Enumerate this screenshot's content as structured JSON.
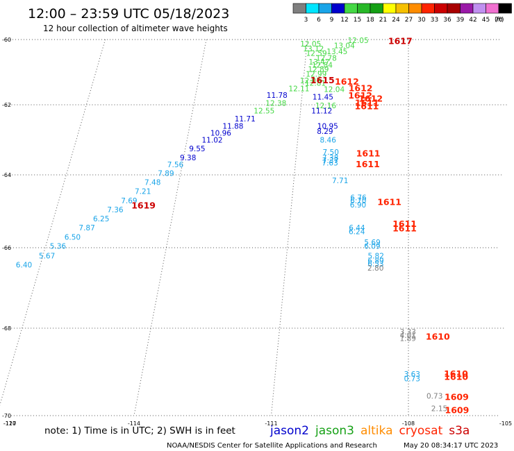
{
  "header": {
    "title": "12:00 – 23:59 UTC 05/18/2023",
    "subtitle": "12 hour collection of altimeter wave heights",
    "units": "(ft)"
  },
  "legend_scale": {
    "labels": [
      "3",
      "6",
      "9",
      "12",
      "15",
      "18",
      "21",
      "24",
      "27",
      "30",
      "33",
      "36",
      "39",
      "42",
      "45",
      "70"
    ],
    "colors": [
      "#7f7f7f",
      "#00e5ff",
      "#19a4e8",
      "#0000cd",
      "#44d844",
      "#28b828",
      "#15a015",
      "#ffff00",
      "#f5c000",
      "#ff8c00",
      "#ff2400",
      "#cc0000",
      "#a80000",
      "#9a1aa8",
      "#c090f0",
      "#f070d0",
      "#000000"
    ]
  },
  "footer": {
    "note": "note:  1) Time is in UTC;  2) SWH is in feet",
    "missions": [
      {
        "name": "jason2",
        "color": "#0000cd"
      },
      {
        "name": "jason3",
        "color": "#15a015"
      },
      {
        "name": "altika",
        "color": "#ff8c00"
      },
      {
        "name": "cryosat",
        "color": "#ff2400"
      },
      {
        "name": "s3a",
        "color": "#cc0000"
      }
    ],
    "credit": "NOAA/NESDIS Center for Satellite Applications and Research",
    "timestamp": "May 20 08:34:17 UTC 2023"
  },
  "chart_data": {
    "type": "scatter",
    "title": "",
    "xlabel": "Longitude",
    "ylabel": "Latitude",
    "xlim": [
      -120,
      -105
    ],
    "ylim": [
      -70,
      -60
    ],
    "x_ticks": [
      -120,
      -117,
      -114,
      -111,
      -108,
      -105
    ],
    "x_tick_labels": [
      "-120",
      "-117",
      "-114",
      "-111",
      "-108",
      "-105"
    ],
    "y_ticks": [
      -60,
      -62,
      -64,
      -66,
      -68,
      -70
    ],
    "y_tick_labels": [
      "-60",
      "-62",
      "-64",
      "-66",
      "-68",
      "-70"
    ],
    "grid": true,
    "series": [
      {
        "name": "jason3",
        "color": "#44d844",
        "points": [
          {
            "lon": -109.8,
            "lat": -60.02,
            "v": "12.05"
          },
          {
            "lon": -111.2,
            "lat": -60.13,
            "v": "12.05"
          },
          {
            "lon": -110.2,
            "lat": -60.18,
            "v": "13.04"
          },
          {
            "lon": -111.1,
            "lat": -60.28,
            "v": "13.12"
          },
          {
            "lon": -110.4,
            "lat": -60.36,
            "v": "13.45"
          },
          {
            "lon": -111.0,
            "lat": -60.42,
            "v": "12.59"
          },
          {
            "lon": -110.7,
            "lat": -60.56,
            "v": "12.78"
          },
          {
            "lon": -110.9,
            "lat": -60.68,
            "v": "13.47"
          },
          {
            "lon": -110.8,
            "lat": -60.78,
            "v": "12.84"
          },
          {
            "lon": -110.9,
            "lat": -60.9,
            "v": "12.89"
          },
          {
            "lon": -110.95,
            "lat": -61.05,
            "v": "12.99"
          },
          {
            "lon": -111.1,
            "lat": -61.25,
            "v": "12.07"
          },
          {
            "lon": -110.95,
            "lat": -61.33,
            "v": "12.81"
          },
          {
            "lon": -111.4,
            "lat": -61.5,
            "v": "12.11"
          },
          {
            "lon": -110.4,
            "lat": -61.52,
            "v": "12.04"
          },
          {
            "lon": -112.0,
            "lat": -61.95,
            "v": "12.38"
          },
          {
            "lon": -110.6,
            "lat": -62.02,
            "v": "12.16"
          },
          {
            "lon": -112.3,
            "lat": -62.17,
            "v": "12.55"
          }
        ]
      },
      {
        "name": "jason2",
        "color": "#0000cd",
        "points": [
          {
            "lon": -112.0,
            "lat": -61.7,
            "v": "11.78"
          },
          {
            "lon": -110.7,
            "lat": -61.75,
            "v": "11.45"
          },
          {
            "lon": -110.7,
            "lat": -62.17,
            "v": "11.12"
          },
          {
            "lon": -112.8,
            "lat": -62.4,
            "v": "11.71"
          },
          {
            "lon": -113.1,
            "lat": -62.6,
            "v": "11.88"
          },
          {
            "lon": -113.4,
            "lat": -62.8,
            "v": "10.96"
          },
          {
            "lon": -113.6,
            "lat": -63.0,
            "v": "11.02"
          },
          {
            "lon": -113.9,
            "lat": -63.25,
            "v": "9.55"
          },
          {
            "lon": -114.1,
            "lat": -63.5,
            "v": "9.38"
          },
          {
            "lon": -110.5,
            "lat": -62.6,
            "v": "10.95"
          },
          {
            "lon": -110.5,
            "lat": -62.75,
            "v": "8.29"
          }
        ]
      },
      {
        "name": "jason2-low",
        "color": "#19a4e8",
        "points": [
          {
            "lon": -110.4,
            "lat": -63.0,
            "v": "8.46"
          },
          {
            "lon": -114.4,
            "lat": -63.7,
            "v": "7.56"
          },
          {
            "lon": -114.6,
            "lat": -63.95,
            "v": "7.89"
          },
          {
            "lon": -114.9,
            "lat": -64.2,
            "v": "7.48"
          },
          {
            "lon": -115.1,
            "lat": -64.45,
            "v": "7.21"
          },
          {
            "lon": -115.4,
            "lat": -64.7,
            "v": "7.69"
          },
          {
            "lon": -115.7,
            "lat": -64.95,
            "v": "7.36"
          },
          {
            "lon": -116.0,
            "lat": -65.2,
            "v": "6.25"
          },
          {
            "lon": -116.3,
            "lat": -65.45,
            "v": "7.87"
          },
          {
            "lon": -116.6,
            "lat": -65.7,
            "v": "6.50"
          },
          {
            "lon": -116.9,
            "lat": -65.95,
            "v": "5.36"
          },
          {
            "lon": -117.1,
            "lat": -66.2,
            "v": "5.67"
          },
          {
            "lon": -117.6,
            "lat": -66.42,
            "v": "6.40"
          },
          {
            "lon": -110.3,
            "lat": -63.35,
            "v": "7.50"
          },
          {
            "lon": -110.3,
            "lat": -63.5,
            "v": "7.38"
          },
          {
            "lon": -110.3,
            "lat": -63.58,
            "v": "7.37"
          },
          {
            "lon": -110.3,
            "lat": -63.65,
            "v": "7.63"
          },
          {
            "lon": -110.0,
            "lat": -64.15,
            "v": "7.71"
          },
          {
            "lon": -109.5,
            "lat": -64.62,
            "v": "6.76"
          },
          {
            "lon": -109.5,
            "lat": -64.7,
            "v": "6.70"
          },
          {
            "lon": -109.5,
            "lat": -64.82,
            "v": "6.90"
          },
          {
            "lon": -109.5,
            "lat": -65.45,
            "v": "6.44"
          },
          {
            "lon": -109.5,
            "lat": -65.55,
            "v": "6.24"
          },
          {
            "lon": -109.1,
            "lat": -65.85,
            "v": "5.69"
          },
          {
            "lon": -109.1,
            "lat": -65.95,
            "v": "6.09"
          },
          {
            "lon": -109.0,
            "lat": -66.2,
            "v": "5.82"
          },
          {
            "lon": -109.0,
            "lat": -66.32,
            "v": "6.89"
          },
          {
            "lon": -109.0,
            "lat": -66.4,
            "v": "6.53"
          },
          {
            "lon": -108.1,
            "lat": -69.05,
            "v": "3.63"
          },
          {
            "lon": -108.1,
            "lat": -69.15,
            "v": "0.73"
          }
        ]
      },
      {
        "name": "low",
        "color": "#7f7f7f",
        "points": [
          {
            "lon": -109.0,
            "lat": -66.5,
            "v": "2.80"
          },
          {
            "lon": -108.2,
            "lat": -68.08,
            "v": "3.33"
          },
          {
            "lon": -108.2,
            "lat": -68.16,
            "v": "4.01"
          },
          {
            "lon": -108.2,
            "lat": -68.23,
            "v": "1.89"
          },
          {
            "lon": -107.6,
            "lat": -69.55,
            "v": "0.73"
          },
          {
            "lon": -107.5,
            "lat": -69.83,
            "v": "2.15"
          }
        ]
      },
      {
        "name": "time-labels-s3a",
        "color": "#cc0000",
        "points": [
          {
            "lon": -108.6,
            "lat": -60.05,
            "v": "1617"
          },
          {
            "lon": -110.8,
            "lat": -61.25,
            "v": "1615"
          },
          {
            "lon": -115.1,
            "lat": -64.85,
            "v": "1619"
          }
        ]
      },
      {
        "name": "time-labels-cryosat",
        "color": "#ff2400",
        "points": [
          {
            "lon": -110.1,
            "lat": -61.3,
            "v": "1612"
          },
          {
            "lon": -109.7,
            "lat": -61.5,
            "v": "1612"
          },
          {
            "lon": -109.7,
            "lat": -61.72,
            "v": "1612"
          },
          {
            "lon": -109.4,
            "lat": -61.82,
            "v": "1612"
          },
          {
            "lon": -109.5,
            "lat": -61.95,
            "v": "1611"
          },
          {
            "lon": -109.5,
            "lat": -62.05,
            "v": "1611"
          },
          {
            "lon": -109.4,
            "lat": -63.4,
            "v": "1611"
          },
          {
            "lon": -109.4,
            "lat": -63.7,
            "v": "1611"
          },
          {
            "lon": -108.8,
            "lat": -64.75,
            "v": "1611"
          },
          {
            "lon": -108.4,
            "lat": -65.35,
            "v": "1611"
          },
          {
            "lon": -108.4,
            "lat": -65.48,
            "v": "1611"
          },
          {
            "lon": -107.6,
            "lat": -68.2,
            "v": "1610"
          },
          {
            "lon": -107.2,
            "lat": -69.05,
            "v": "1610"
          },
          {
            "lon": -107.2,
            "lat": -69.12,
            "v": "1610"
          },
          {
            "lon": -107.2,
            "lat": -69.58,
            "v": "1609"
          },
          {
            "lon": -107.2,
            "lat": -69.88,
            "v": "1609"
          }
        ]
      }
    ]
  }
}
